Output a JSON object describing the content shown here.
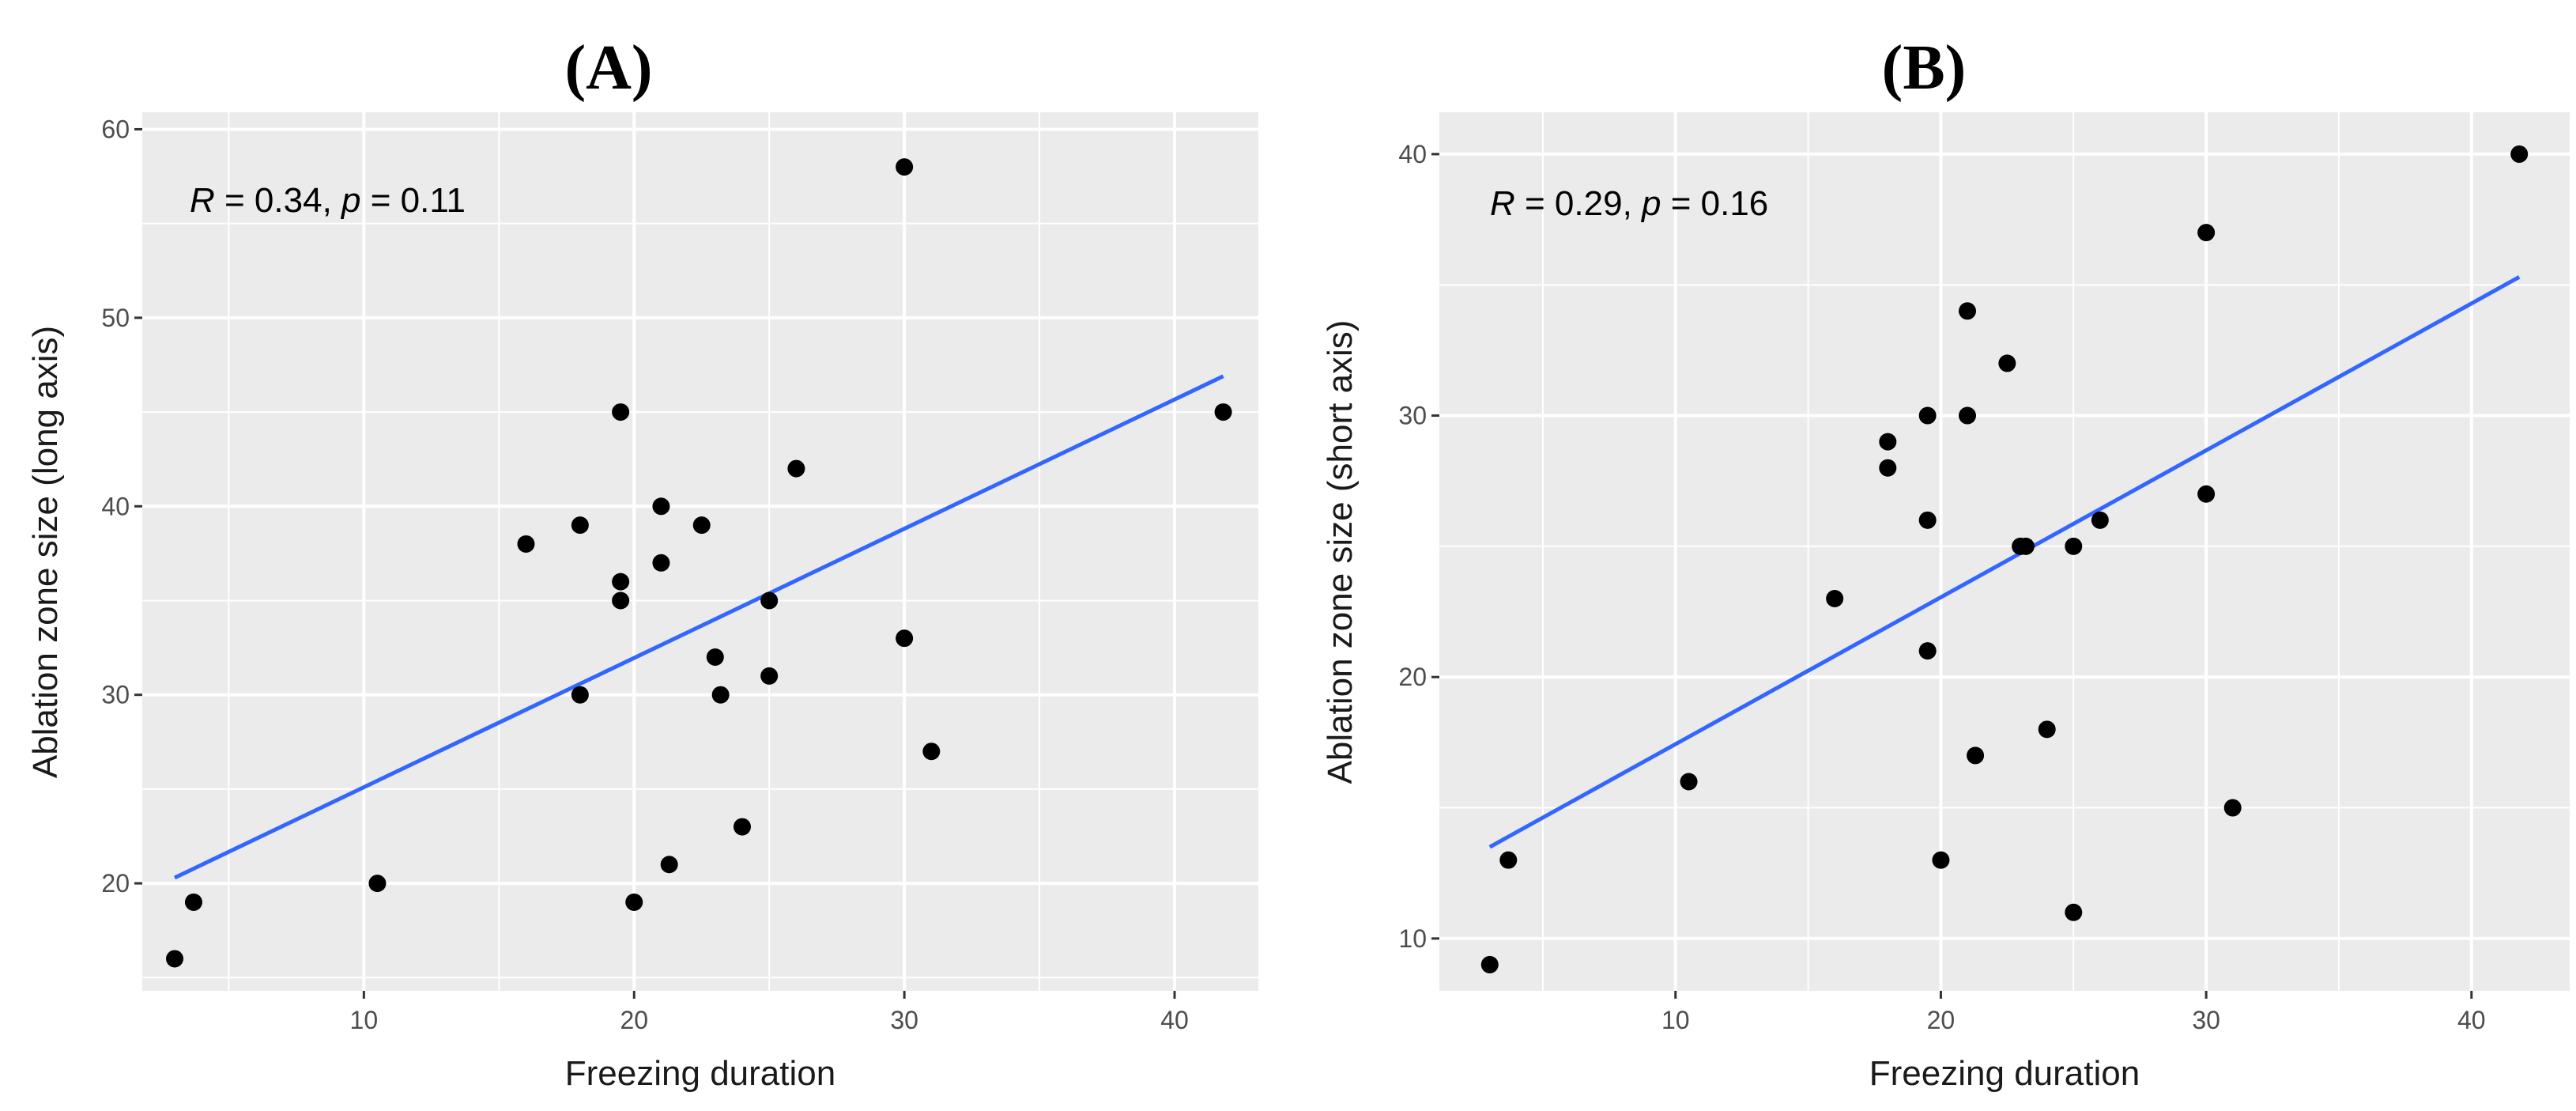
{
  "chart_data": [
    {
      "type": "scatter",
      "panel_label": "(A)",
      "xlabel": "Freezing duration",
      "ylabel": "Ablation zone size (long axis)",
      "xlim": [
        1.8,
        43.1
      ],
      "ylim": [
        14.3,
        60.9
      ],
      "x_ticks": [
        10,
        20,
        30,
        40
      ],
      "y_ticks": [
        20,
        30,
        40,
        50,
        60
      ],
      "annotation": {
        "r_sym": "R",
        "r_text": " = 0.34, ",
        "p_sym": "p",
        "p_text": " = 0.11"
      },
      "points": [
        {
          "x": 3.0,
          "y": 16
        },
        {
          "x": 3.7,
          "y": 19
        },
        {
          "x": 10.5,
          "y": 20
        },
        {
          "x": 16,
          "y": 38
        },
        {
          "x": 18,
          "y": 39
        },
        {
          "x": 18,
          "y": 30
        },
        {
          "x": 19.5,
          "y": 45
        },
        {
          "x": 19.5,
          "y": 36
        },
        {
          "x": 19.5,
          "y": 35
        },
        {
          "x": 20,
          "y": 19
        },
        {
          "x": 21,
          "y": 40
        },
        {
          "x": 21,
          "y": 37
        },
        {
          "x": 21.3,
          "y": 21
        },
        {
          "x": 22.5,
          "y": 39
        },
        {
          "x": 23,
          "y": 32
        },
        {
          "x": 23.2,
          "y": 30
        },
        {
          "x": 24,
          "y": 23
        },
        {
          "x": 25,
          "y": 35
        },
        {
          "x": 25,
          "y": 31
        },
        {
          "x": 26,
          "y": 42
        },
        {
          "x": 30,
          "y": 58
        },
        {
          "x": 30,
          "y": 33
        },
        {
          "x": 31,
          "y": 27
        },
        {
          "x": 41.8,
          "y": 45
        }
      ],
      "fit_line": {
        "x": [
          3.0,
          41.8
        ],
        "y": [
          20.3,
          46.9
        ]
      },
      "fit_color": "#3366FF"
    },
    {
      "type": "scatter",
      "panel_label": "(B)",
      "xlabel": "Freezing duration",
      "ylabel": "Ablation zone size (short axis)",
      "xlim": [
        1.1,
        43.7
      ],
      "ylim": [
        8.0,
        41.6
      ],
      "x_ticks": [
        10,
        20,
        30,
        40
      ],
      "y_ticks": [
        10,
        20,
        30,
        40
      ],
      "annotation": {
        "r_sym": "R",
        "r_text": " = 0.29, ",
        "p_sym": "p",
        "p_text": " = 0.16"
      },
      "points": [
        {
          "x": 3.0,
          "y": 9
        },
        {
          "x": 3.7,
          "y": 13
        },
        {
          "x": 10.5,
          "y": 16
        },
        {
          "x": 16,
          "y": 23
        },
        {
          "x": 18,
          "y": 29
        },
        {
          "x": 18,
          "y": 28
        },
        {
          "x": 19.5,
          "y": 30
        },
        {
          "x": 19.5,
          "y": 26
        },
        {
          "x": 19.5,
          "y": 21
        },
        {
          "x": 20,
          "y": 13
        },
        {
          "x": 21,
          "y": 34
        },
        {
          "x": 21,
          "y": 30
        },
        {
          "x": 21.3,
          "y": 17
        },
        {
          "x": 22.5,
          "y": 32
        },
        {
          "x": 23,
          "y": 25
        },
        {
          "x": 23.2,
          "y": 25
        },
        {
          "x": 24,
          "y": 18
        },
        {
          "x": 25,
          "y": 25
        },
        {
          "x": 25,
          "y": 11
        },
        {
          "x": 26,
          "y": 26
        },
        {
          "x": 30,
          "y": 37
        },
        {
          "x": 30,
          "y": 27
        },
        {
          "x": 31,
          "y": 15
        },
        {
          "x": 41.8,
          "y": 40
        }
      ],
      "fit_line": {
        "x": [
          3.0,
          41.8
        ],
        "y": [
          13.5,
          35.3
        ]
      },
      "fit_color": "#3366FF"
    }
  ],
  "colors": {
    "panel_background": "#EBEBEB",
    "gridline": "#FFFFFF",
    "point": "#000000",
    "tick": "#333333"
  }
}
